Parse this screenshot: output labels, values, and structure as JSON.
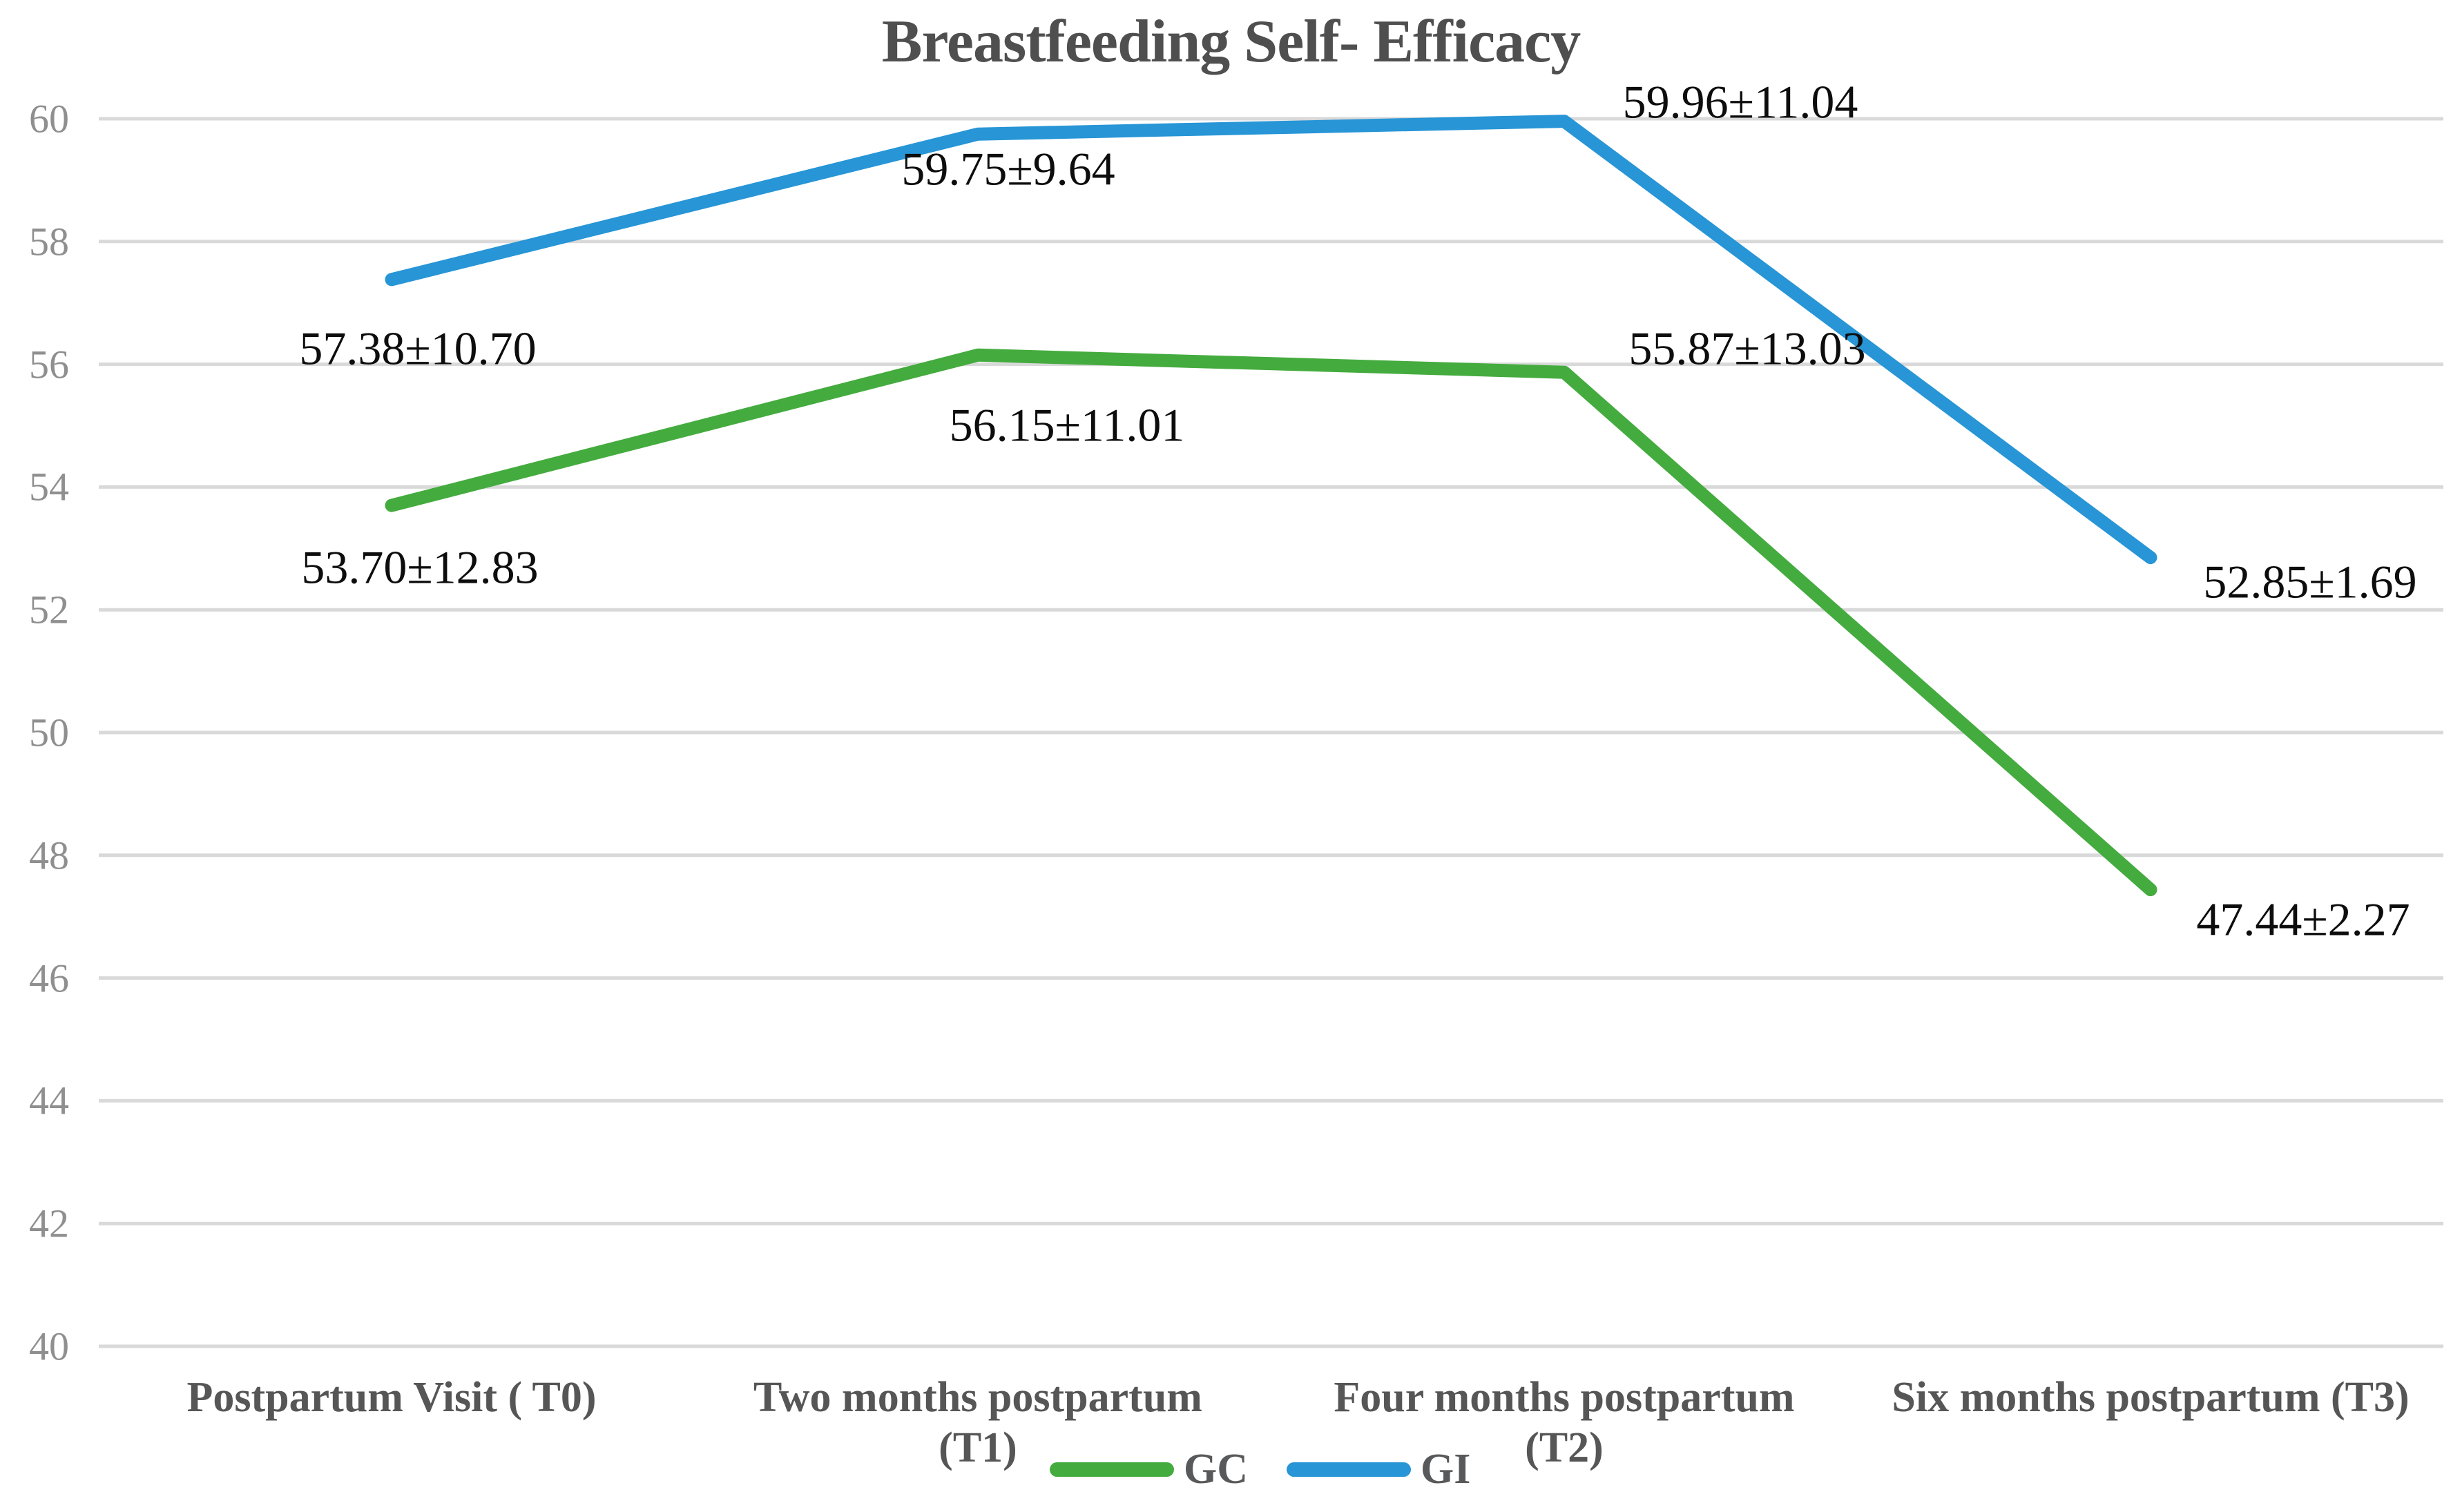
{
  "title": "Breastfeeding Self- Efficacy",
  "chart_data": {
    "type": "line",
    "title": "Breastfeeding Self- Efficacy",
    "categories": [
      {
        "line1": "Postpartum Visit ( T0)",
        "line2": ""
      },
      {
        "line1": "Two months postpartum",
        "line2": "(T1)"
      },
      {
        "line1": "Four months postpartum",
        "line2": "(T2)"
      },
      {
        "line1": "Six months postpartum (T3)",
        "line2": ""
      }
    ],
    "series": [
      {
        "name": "GC",
        "color": "#44ab3e",
        "values": [
          53.7,
          56.15,
          55.87,
          47.44
        ],
        "point_labels": [
          "53.70±12.83",
          "56.15±11.01",
          "55.87±13.03",
          "47.44±2.27"
        ]
      },
      {
        "name": "GI",
        "color": "#2795d6",
        "values": [
          57.38,
          59.75,
          59.96,
          52.85
        ],
        "point_labels": [
          "57.38±10.70",
          "59.75±9.64",
          "59.96±11.04",
          "52.85±1.69"
        ]
      }
    ],
    "yticks": [
      60,
      58,
      56,
      54,
      52,
      50,
      48,
      46,
      44,
      42,
      40
    ],
    "ylim": [
      40,
      60
    ],
    "xlabel": "",
    "ylabel": "",
    "grid": true,
    "legend_position": "bottom"
  },
  "colors": {
    "grid": "#d9d9d9",
    "background": "#ffffff",
    "title_text": "#4f4f4f",
    "axis_tick_text": "#8f8f8f",
    "category_text": "#565656",
    "data_label_text": "#0d0d0d"
  }
}
